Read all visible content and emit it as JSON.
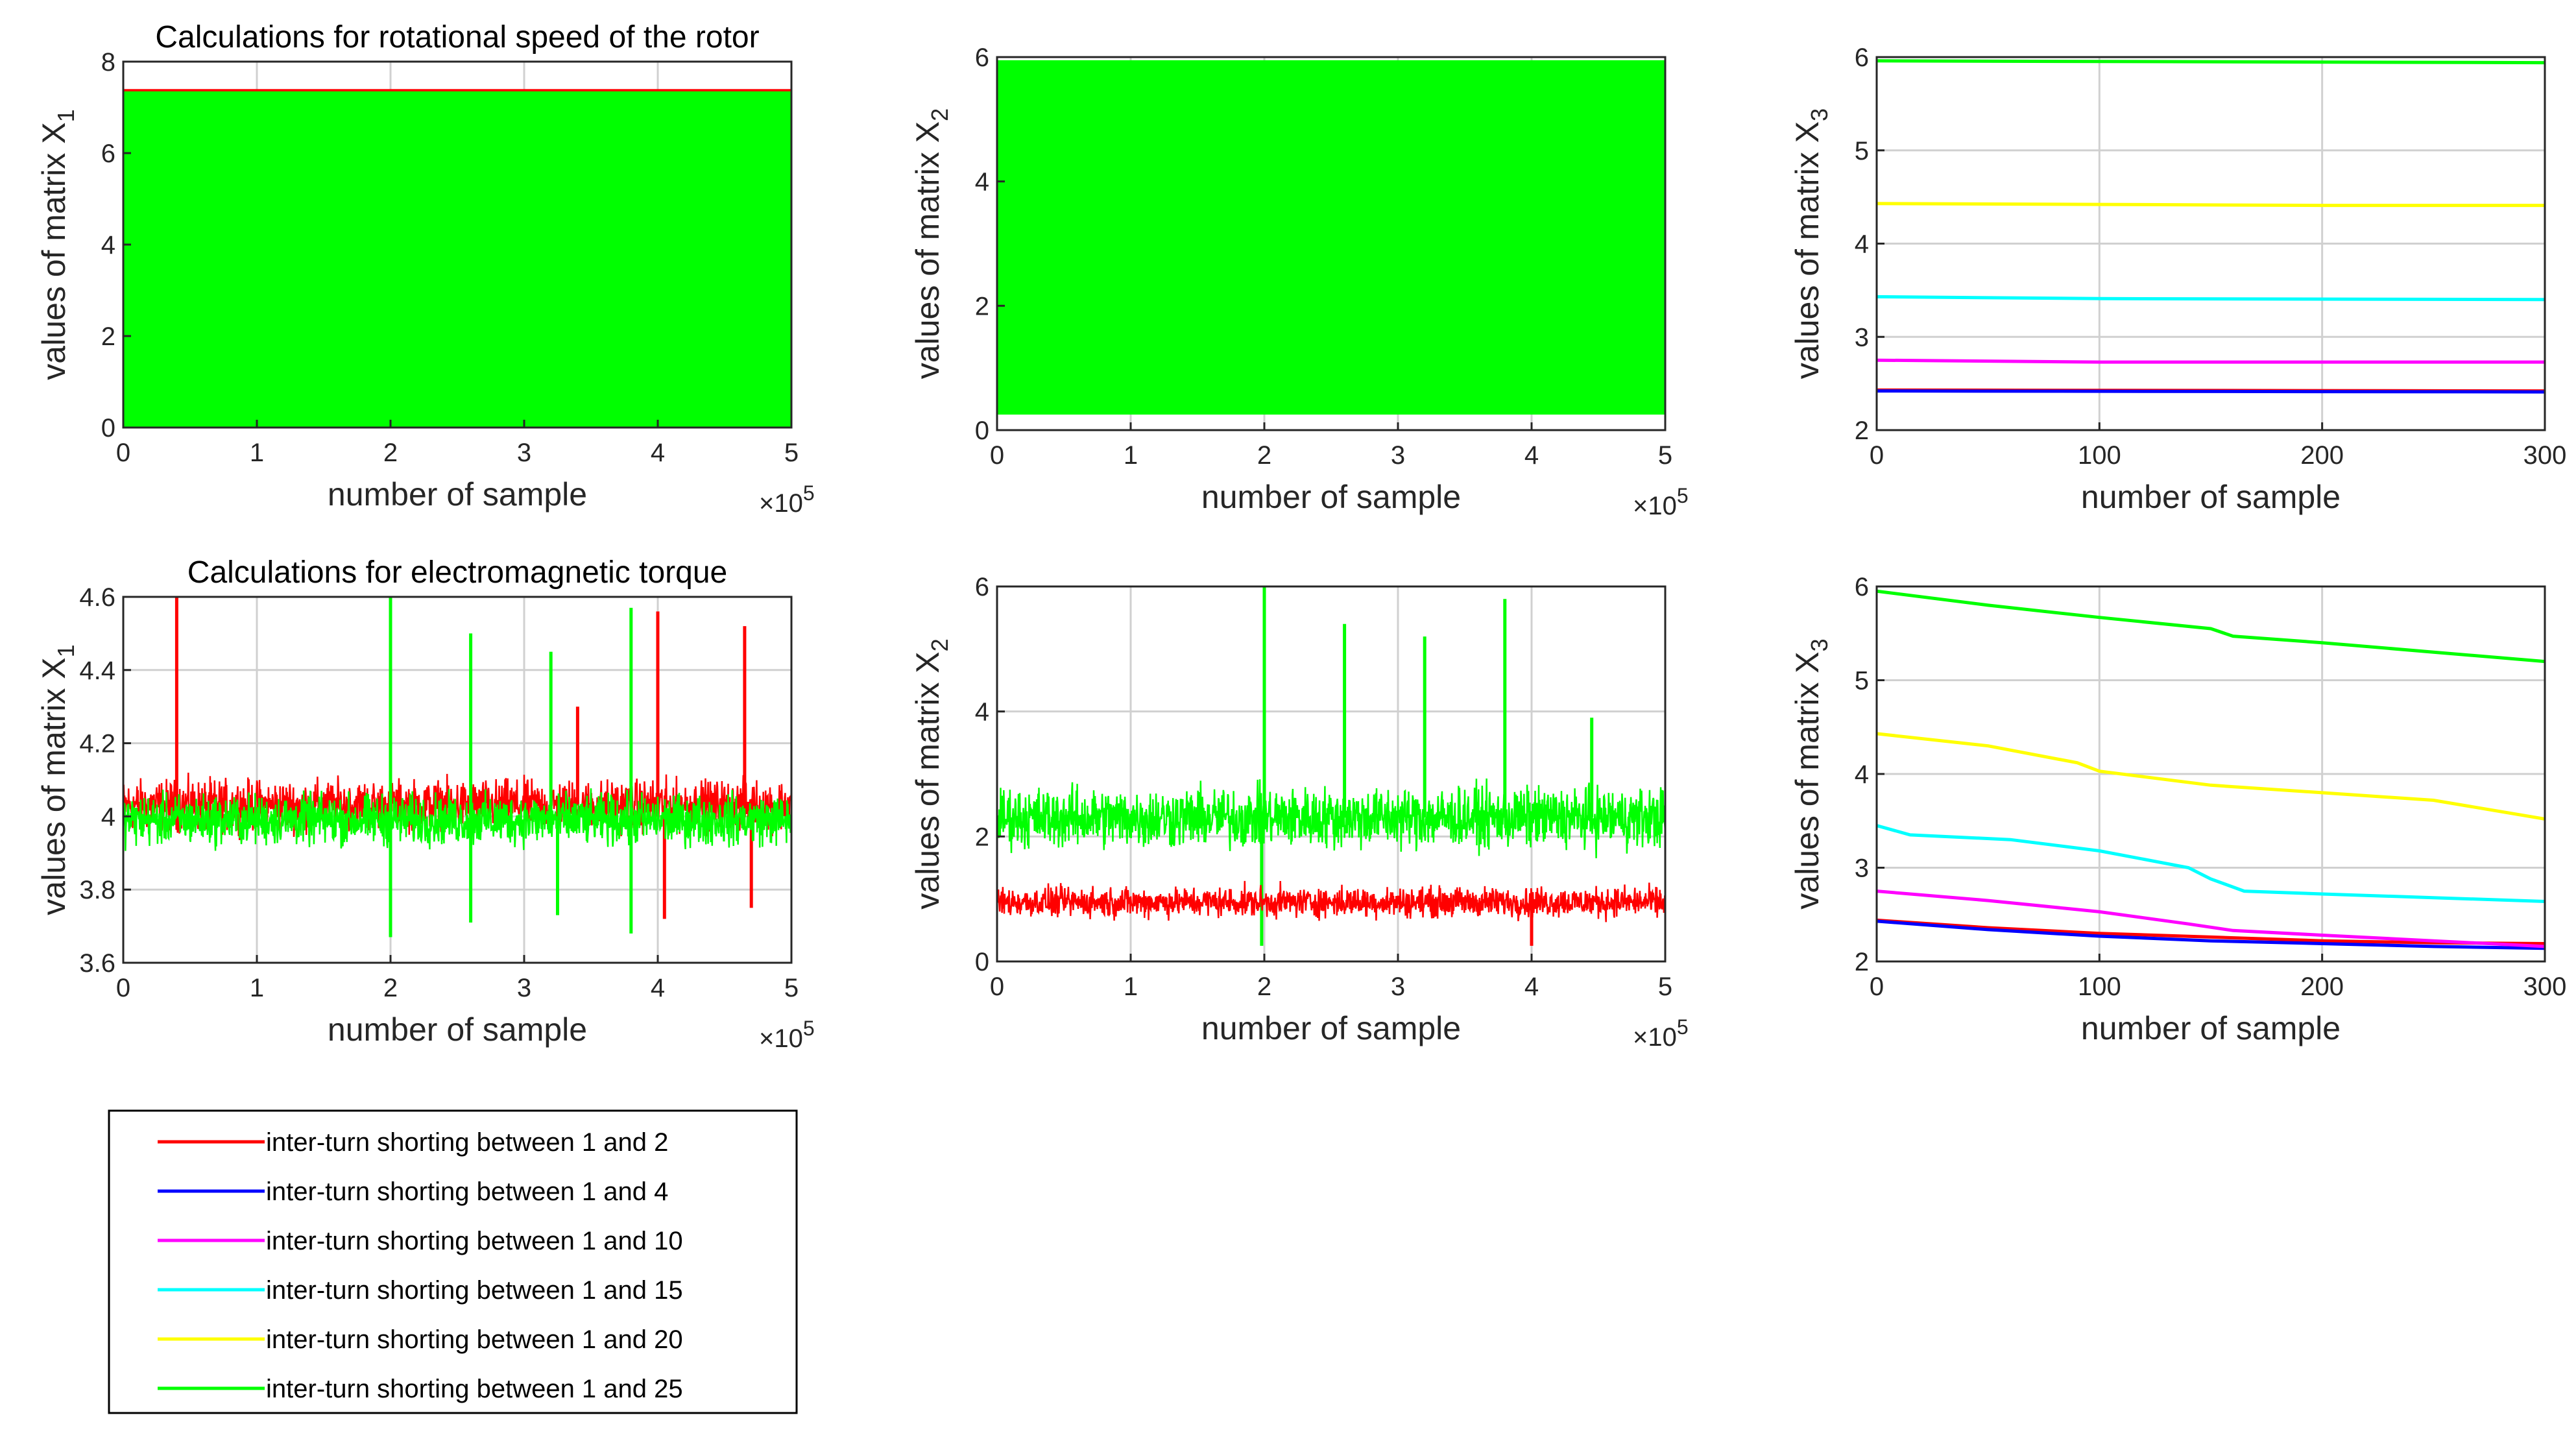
{
  "figure": {
    "legend_title": "",
    "legend": [
      {
        "label": "inter-turn shorting between 1 and 2",
        "color": "#ff0000"
      },
      {
        "label": "inter-turn shorting between 1 and 4",
        "color": "#0000ff"
      },
      {
        "label": "inter-turn shorting between 1 and 10",
        "color": "#ff00ff"
      },
      {
        "label": "inter-turn shorting between 1 and 15",
        "color": "#00ffff"
      },
      {
        "label": "inter-turn shorting between 1 and 20",
        "color": "#ffff00"
      },
      {
        "label": "inter-turn shorting between 1 and 25",
        "color": "#00ff00"
      }
    ]
  },
  "chart_data": [
    {
      "id": "p11",
      "type": "line",
      "title": "Calculations for rotational speed of the rotor",
      "xlabel": "number of sample",
      "ylabel_base": "values of matrix X",
      "ylabel_sub": "1",
      "xlim": [
        0,
        5
      ],
      "ylim": [
        0,
        8
      ],
      "x_multiplier": "×10",
      "x_multiplier_exp": "5",
      "xticks": [
        "0",
        "1",
        "2",
        "3",
        "4",
        "5"
      ],
      "yticks": [
        "0",
        "2",
        "4",
        "6",
        "8"
      ],
      "grid": true,
      "series": [
        {
          "name": "inter-turn shorting between 1 and 2",
          "color": "#ff0000",
          "kind": "band",
          "range": [
            0,
            7.4
          ]
        },
        {
          "name": "inter-turn shorting between 1 and 25",
          "color": "#00ff00",
          "kind": "band",
          "range": [
            0,
            7.35
          ]
        }
      ]
    },
    {
      "id": "p12",
      "type": "line",
      "title": "",
      "xlabel": "number of sample",
      "ylabel_base": "values of matrix X",
      "ylabel_sub": "2",
      "xlim": [
        0,
        5
      ],
      "ylim": [
        0,
        6
      ],
      "x_multiplier": "×10",
      "x_multiplier_exp": "5",
      "xticks": [
        "0",
        "1",
        "2",
        "3",
        "4",
        "5"
      ],
      "yticks": [
        "0",
        "2",
        "4",
        "6"
      ],
      "grid": true,
      "series": [
        {
          "name": "inter-turn shorting between 1 and 25",
          "color": "#00ff00",
          "kind": "band",
          "range": [
            0.25,
            5.95
          ]
        }
      ]
    },
    {
      "id": "p13",
      "type": "line",
      "title": "",
      "xlabel": "number of sample",
      "ylabel_base": "values of matrix X",
      "ylabel_sub": "3",
      "xlim": [
        0,
        300
      ],
      "ylim": [
        2,
        6
      ],
      "x_multiplier": "",
      "x_multiplier_exp": "",
      "xticks": [
        "0",
        "100",
        "200",
        "300"
      ],
      "yticks": [
        "2",
        "3",
        "4",
        "5",
        "6"
      ],
      "grid": true,
      "series": [
        {
          "name": "inter-turn shorting between 1 and 2",
          "color": "#ff0000",
          "kind": "line",
          "x": [
            0,
            300
          ],
          "y": [
            2.43,
            2.42
          ]
        },
        {
          "name": "inter-turn shorting between 1 and 4",
          "color": "#0000ff",
          "kind": "line",
          "x": [
            0,
            300
          ],
          "y": [
            2.42,
            2.41
          ]
        },
        {
          "name": "inter-turn shorting between 1 and 10",
          "color": "#ff00ff",
          "kind": "line",
          "x": [
            0,
            100,
            300
          ],
          "y": [
            2.75,
            2.73,
            2.73
          ]
        },
        {
          "name": "inter-turn shorting between 1 and 15",
          "color": "#00ffff",
          "kind": "line",
          "x": [
            0,
            100,
            300
          ],
          "y": [
            3.43,
            3.41,
            3.4
          ]
        },
        {
          "name": "inter-turn shorting between 1 and 20",
          "color": "#ffff00",
          "kind": "line",
          "x": [
            0,
            100,
            200,
            300
          ],
          "y": [
            4.43,
            4.42,
            4.41,
            4.41
          ]
        },
        {
          "name": "inter-turn shorting between 1 and 25",
          "color": "#00ff00",
          "kind": "line",
          "x": [
            0,
            300
          ],
          "y": [
            5.96,
            5.94
          ]
        }
      ]
    },
    {
      "id": "p21",
      "type": "line",
      "title": "Calculations for electromagnetic torque",
      "xlabel": "number of sample",
      "ylabel_base": "values of matrix X",
      "ylabel_sub": "1",
      "xlim": [
        0,
        5
      ],
      "ylim": [
        3.6,
        4.6
      ],
      "x_multiplier": "×10",
      "x_multiplier_exp": "5",
      "xticks": [
        "0",
        "1",
        "2",
        "3",
        "4",
        "5"
      ],
      "yticks": [
        "3.6",
        "3.8",
        "4",
        "4.2",
        "4.4",
        "4.6"
      ],
      "grid": true,
      "series": [
        {
          "name": "inter-turn shorting between 1 and 2",
          "color": "#ff0000",
          "kind": "noise",
          "center": 4.03,
          "amp": 0.1,
          "spikes": [
            [
              0.4,
              4.6
            ],
            [
              2.0,
              4.57
            ],
            [
              3.4,
              4.3
            ],
            [
              4.0,
              4.56
            ],
            [
              4.05,
              3.72
            ],
            [
              4.65,
              4.52
            ],
            [
              4.7,
              3.75
            ]
          ]
        },
        {
          "name": "inter-turn shorting between 1 and 25",
          "color": "#00ff00",
          "kind": "noise",
          "center": 3.99,
          "amp": 0.1,
          "spikes": [
            [
              2.0,
              4.6
            ],
            [
              2.0,
              3.67
            ],
            [
              2.6,
              4.5
            ],
            [
              2.6,
              3.71
            ],
            [
              3.2,
              4.45
            ],
            [
              3.25,
              3.73
            ],
            [
              3.8,
              4.57
            ],
            [
              3.8,
              3.68
            ]
          ]
        }
      ]
    },
    {
      "id": "p22",
      "type": "line",
      "title": "",
      "xlabel": "number of sample",
      "ylabel_base": "values of matrix X",
      "ylabel_sub": "2",
      "xlim": [
        0,
        5
      ],
      "ylim": [
        0,
        6
      ],
      "x_multiplier": "×10",
      "x_multiplier_exp": "5",
      "xticks": [
        "0",
        "1",
        "2",
        "3",
        "4",
        "5"
      ],
      "yticks": [
        "0",
        "2",
        "4",
        "6"
      ],
      "grid": true,
      "series": [
        {
          "name": "inter-turn shorting between 1 and 25",
          "color": "#00ff00",
          "kind": "noise",
          "center": 2.3,
          "amp": 0.7,
          "spikes": [
            [
              2.0,
              6.0
            ],
            [
              2.6,
              5.4
            ],
            [
              3.2,
              5.2
            ],
            [
              3.8,
              5.8
            ],
            [
              4.45,
              3.9
            ],
            [
              1.98,
              0.25
            ]
          ]
        },
        {
          "name": "inter-turn shorting between 1 and 2",
          "color": "#ff0000",
          "kind": "noise",
          "center": 0.95,
          "amp": 0.35,
          "spikes": [
            [
              4.0,
              0.25
            ]
          ]
        }
      ]
    },
    {
      "id": "p23",
      "type": "line",
      "title": "",
      "xlabel": "number of sample",
      "ylabel_base": "values of matrix X",
      "ylabel_sub": "3",
      "xlim": [
        0,
        300
      ],
      "ylim": [
        2,
        6
      ],
      "x_multiplier": "",
      "x_multiplier_exp": "",
      "xticks": [
        "0",
        "100",
        "200",
        "300"
      ],
      "yticks": [
        "2",
        "3",
        "4",
        "5",
        "6"
      ],
      "grid": true,
      "series": [
        {
          "name": "inter-turn shorting between 1 and 2",
          "color": "#ff0000",
          "kind": "line",
          "x": [
            0,
            50,
            100,
            150,
            200,
            250,
            300
          ],
          "y": [
            2.44,
            2.36,
            2.3,
            2.26,
            2.22,
            2.2,
            2.19
          ]
        },
        {
          "name": "inter-turn shorting between 1 and 4",
          "color": "#0000ff",
          "kind": "line",
          "x": [
            0,
            50,
            100,
            150,
            200,
            250,
            300
          ],
          "y": [
            2.43,
            2.34,
            2.27,
            2.22,
            2.19,
            2.16,
            2.14
          ]
        },
        {
          "name": "inter-turn shorting between 1 and 10",
          "color": "#ff00ff",
          "kind": "line",
          "x": [
            0,
            50,
            100,
            140,
            160,
            200,
            250,
            300
          ],
          "y": [
            2.75,
            2.65,
            2.53,
            2.4,
            2.33,
            2.28,
            2.22,
            2.16
          ]
        },
        {
          "name": "inter-turn shorting between 1 and 15",
          "color": "#00ffff",
          "kind": "line",
          "x": [
            0,
            15,
            60,
            100,
            140,
            150,
            165,
            200,
            250,
            300
          ],
          "y": [
            3.45,
            3.35,
            3.3,
            3.18,
            3.0,
            2.88,
            2.75,
            2.72,
            2.68,
            2.64
          ]
        },
        {
          "name": "inter-turn shorting between 1 and 20",
          "color": "#ffff00",
          "kind": "line",
          "x": [
            0,
            50,
            90,
            100,
            150,
            200,
            250,
            300
          ],
          "y": [
            4.43,
            4.3,
            4.12,
            4.03,
            3.88,
            3.8,
            3.72,
            3.52
          ]
        },
        {
          "name": "inter-turn shorting between 1 and 25",
          "color": "#00ff00",
          "kind": "line",
          "x": [
            0,
            50,
            100,
            150,
            160,
            200,
            250,
            300
          ],
          "y": [
            5.95,
            5.8,
            5.67,
            5.55,
            5.47,
            5.4,
            5.3,
            5.2
          ]
        }
      ]
    }
  ]
}
